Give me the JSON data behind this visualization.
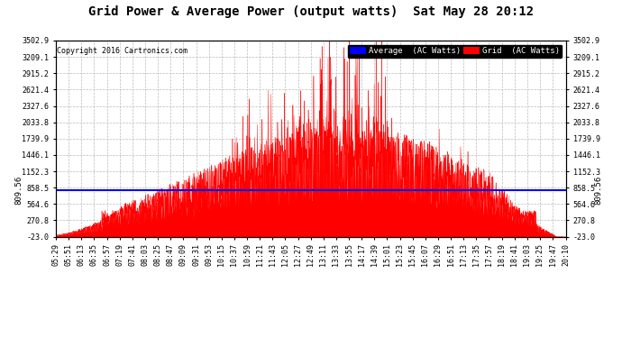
{
  "title": "Grid Power & Average Power (output watts)  Sat May 28 20:12",
  "copyright": "Copyright 2016 Cartronics.com",
  "y_ticks": [
    -23.0,
    270.8,
    564.6,
    858.5,
    1152.3,
    1446.1,
    1739.9,
    2033.8,
    2327.6,
    2621.4,
    2915.2,
    3209.1,
    3502.9
  ],
  "ylim": [
    -23.0,
    3502.9
  ],
  "avg_line_value": 809.56,
  "avg_line_label": "809.56",
  "legend_avg_label": "Average  (AC Watts)",
  "legend_grid_label": "Grid  (AC Watts)",
  "avg_line_color": "#0000ff",
  "grid_fill_color": "#ff0000",
  "background_color": "#ffffff",
  "plot_bg_color": "#ffffff",
  "title_color": "#000000",
  "copyright_color": "#000000",
  "grid_line_color": "#bbbbbb",
  "x_labels": [
    "05:29",
    "05:51",
    "06:13",
    "06:35",
    "06:57",
    "07:19",
    "07:41",
    "08:03",
    "08:25",
    "08:47",
    "09:09",
    "09:31",
    "09:53",
    "10:15",
    "10:37",
    "10:59",
    "11:21",
    "11:43",
    "12:05",
    "12:27",
    "12:49",
    "13:11",
    "13:33",
    "13:55",
    "14:17",
    "14:39",
    "15:01",
    "15:23",
    "15:45",
    "16:07",
    "16:29",
    "16:51",
    "17:13",
    "17:35",
    "17:57",
    "18:19",
    "18:41",
    "19:03",
    "19:25",
    "19:47",
    "20:10"
  ]
}
